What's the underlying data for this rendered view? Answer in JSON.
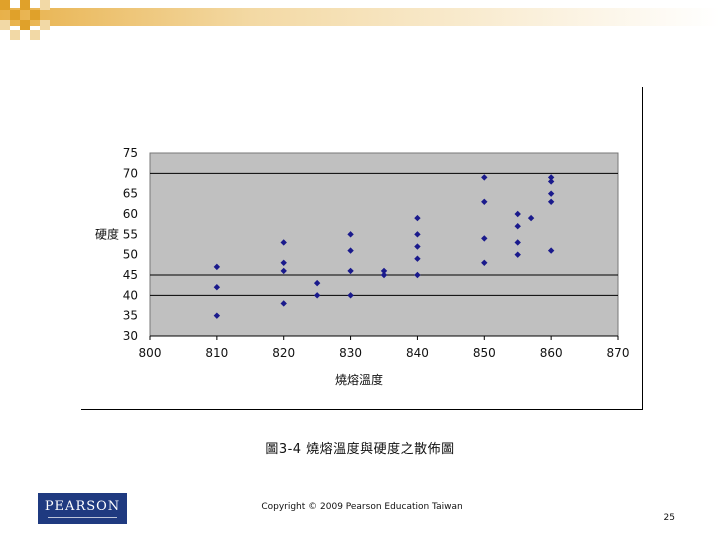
{
  "caption": "圖3-4 燒熔溫度與硬度之散佈圖",
  "copyright": "Copyright © 2009 Pearson Education Taiwan",
  "page_number": "25",
  "logo_text": "PEARSON",
  "colors": {
    "plot_bg": "#c0c0c0",
    "marker": "#1a1a8c",
    "logo_bg": "#1f3a80",
    "band_orange": "#e0a12a",
    "band_light": "#f2d9a6"
  },
  "chart_data": {
    "type": "scatter",
    "title": "",
    "xlabel": "燒熔溫度",
    "ylabel": "硬度",
    "xlim": [
      800,
      870
    ],
    "ylim": [
      30,
      75
    ],
    "x_ticks": [
      "800",
      "810",
      "820",
      "830",
      "840",
      "850",
      "860",
      "870"
    ],
    "y_ticks": [
      "30",
      "35",
      "40",
      "45",
      "50",
      "55",
      "60",
      "65",
      "70",
      "75"
    ],
    "grid": "horizontal",
    "legend": "none",
    "marker": "diamond",
    "points": [
      {
        "x": 810,
        "y": 47
      },
      {
        "x": 810,
        "y": 42
      },
      {
        "x": 810,
        "y": 35
      },
      {
        "x": 820,
        "y": 53
      },
      {
        "x": 820,
        "y": 48
      },
      {
        "x": 820,
        "y": 46
      },
      {
        "x": 820,
        "y": 38
      },
      {
        "x": 825,
        "y": 43
      },
      {
        "x": 825,
        "y": 40
      },
      {
        "x": 830,
        "y": 55
      },
      {
        "x": 830,
        "y": 51
      },
      {
        "x": 830,
        "y": 46
      },
      {
        "x": 830,
        "y": 40
      },
      {
        "x": 835,
        "y": 46
      },
      {
        "x": 835,
        "y": 45
      },
      {
        "x": 840,
        "y": 59
      },
      {
        "x": 840,
        "y": 55
      },
      {
        "x": 840,
        "y": 52
      },
      {
        "x": 840,
        "y": 49
      },
      {
        "x": 840,
        "y": 45
      },
      {
        "x": 850,
        "y": 69
      },
      {
        "x": 850,
        "y": 63
      },
      {
        "x": 850,
        "y": 54
      },
      {
        "x": 850,
        "y": 48
      },
      {
        "x": 855,
        "y": 60
      },
      {
        "x": 855,
        "y": 57
      },
      {
        "x": 855,
        "y": 53
      },
      {
        "x": 855,
        "y": 50
      },
      {
        "x": 857,
        "y": 59
      },
      {
        "x": 860,
        "y": 69
      },
      {
        "x": 860,
        "y": 68
      },
      {
        "x": 860,
        "y": 65
      },
      {
        "x": 860,
        "y": 63
      },
      {
        "x": 860,
        "y": 51
      }
    ]
  }
}
